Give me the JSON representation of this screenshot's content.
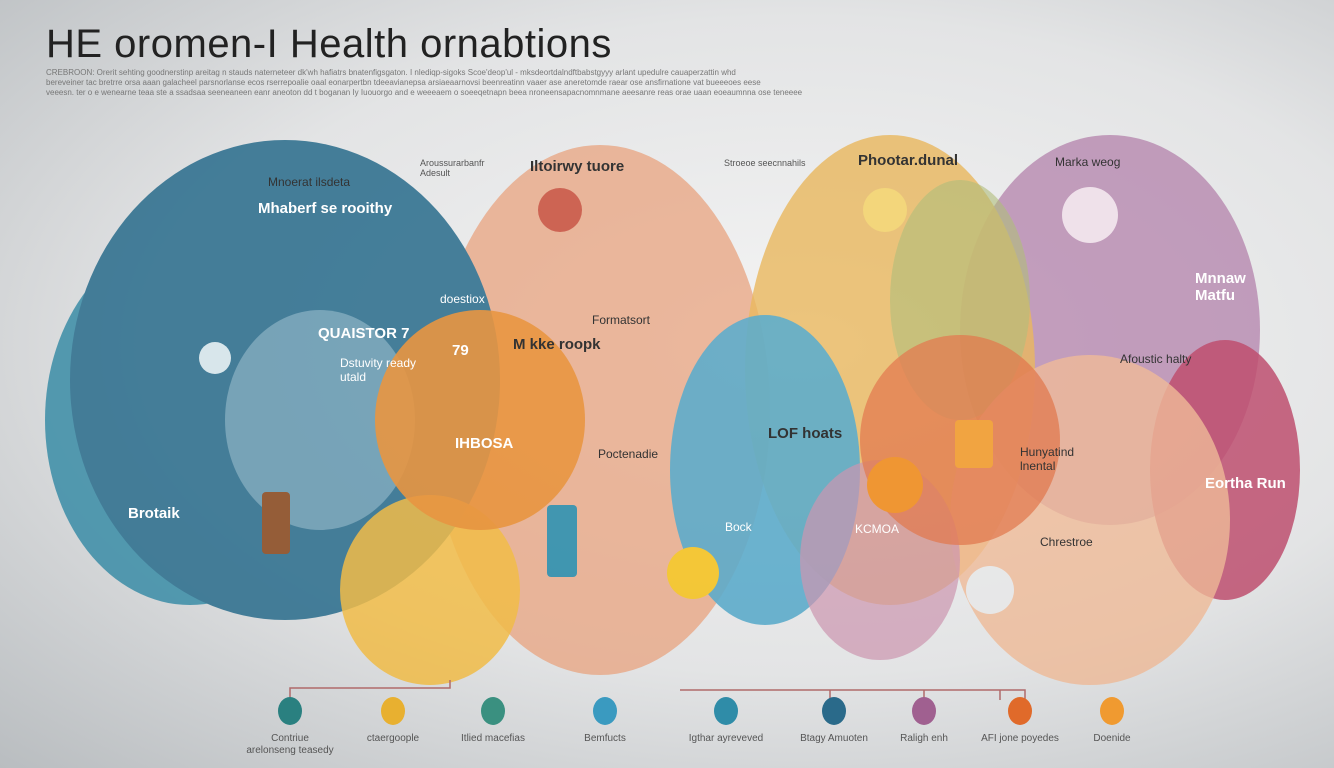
{
  "title": "HE oromen-I Health ornabtions",
  "subtitle_lines": [
    "CREBROON: Orerit sehting goodnerstinp areitag n stauds naterneteer dk'wh hafiatrs bnatenfigsgaton. I nlediqp-sigoks Scoe'deop'ul - mksdeortdalndftbabstgyyy arlant upedulre cauaperzattin whd",
    "bereveiner tac bretrre orsa aaan galacheel parsnorlanse ecos rserrepoalie oaal eonarpertbn tdeeavianepsa arsiaeaarnovsi beenreatinn vaaer ase aneretomde raear ose ansfirnatione vat bueeeoes eese",
    "veeesn. ter o e wenearne teaa ste a ssadsaa seeneaneen eanr aneoton dd t boganan Iy Iuouorgo and e weeeaem o soeeqetnapn beea nroneensapacnomnmane aeesanre reas orae uaan eoeaumnna ose teneeee"
  ],
  "colors": {
    "dark_blue": "#2e6f8e",
    "teal": "#3f8fa8",
    "peach": "#e8a27e",
    "orange": "#e88a2a",
    "yellow": "#f2b632",
    "green": "#a9b86b",
    "purple": "#b07aa8",
    "magenta": "#b83a5e",
    "sky": "#4aa3c7"
  },
  "circles": [
    {
      "heading": "Mnoerat ilsdeta"
    },
    {
      "heading": "Mhaberf se rooithy"
    },
    {
      "heading": "Iltoirwy tuore"
    },
    {
      "heading": "Phootar.dunal"
    },
    {
      "heading": "Marka weog"
    },
    {
      "heading": "QUAISTOR 7"
    },
    {
      "heading": "Dstuvity ready utald"
    },
    {
      "heading": "79"
    },
    {
      "heading": "M kke roopk"
    },
    {
      "heading": "IHBOSA"
    },
    {
      "heading": "Formatsort"
    },
    {
      "heading": "LOF hoats"
    },
    {
      "heading": "Bock"
    },
    {
      "heading": "Brotaik"
    },
    {
      "heading": "Afoustic halty"
    },
    {
      "heading": "Mnnaw Matfu"
    },
    {
      "heading": "Eortha Run"
    },
    {
      "heading": "Hunyatind lnental"
    },
    {
      "heading": "KCMOA"
    },
    {
      "heading": "Poctenadie"
    },
    {
      "heading": "Chrestroe"
    },
    {
      "heading": "doestiox"
    },
    {
      "heading": "Aroussurarbanfr Adesult"
    },
    {
      "heading": "Stroeoe seecnnahils"
    }
  ],
  "bottom_nodes": [
    {
      "label": "Contriue",
      "sub": "arelonseng teasedy"
    },
    {
      "label": "ctaergoople",
      "sub": ""
    },
    {
      "label": "Itlied macefias",
      "sub": ""
    },
    {
      "label": "Bemfucts",
      "sub": ""
    },
    {
      "label": "Igthar ayreveved",
      "sub": ""
    },
    {
      "label": "Btagy Amuoten",
      "sub": ""
    },
    {
      "label": "Raligh enh",
      "sub": ""
    },
    {
      "label": "AFI jone poyedes",
      "sub": ""
    },
    {
      "label": "Doenide",
      "sub": ""
    }
  ]
}
